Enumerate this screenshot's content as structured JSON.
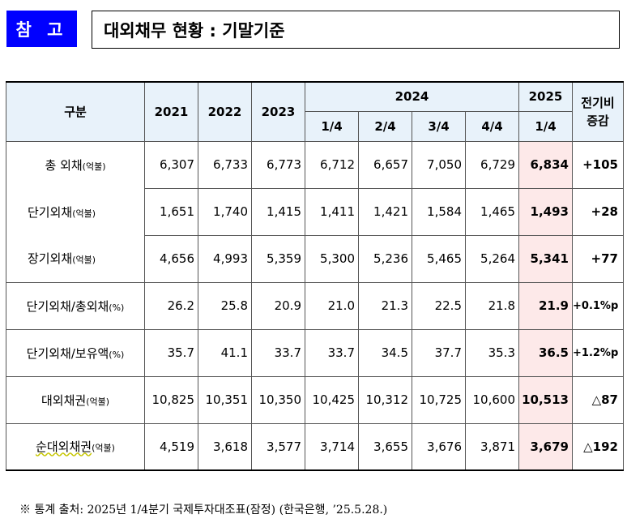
{
  "badge": "참 고",
  "title": "대외채무 현황 : 기말기준",
  "header": {
    "category": "구분",
    "years": [
      "2021",
      "2022",
      "2023"
    ],
    "year_2024": "2024",
    "year_2025": "2025",
    "quarters_2024": [
      "1/4",
      "2/4",
      "3/4",
      "4/4"
    ],
    "quarter_2025": "1/4",
    "change": "전기비\n증감"
  },
  "rows": [
    {
      "label": "총 외채",
      "unit": "(억불)",
      "values": [
        "6,307",
        "6,733",
        "6,773",
        "6,712",
        "6,657",
        "7,050",
        "6,729"
      ],
      "latest": "6,834",
      "change": "+105"
    },
    {
      "label": "단기외채",
      "unit": "(억불)",
      "values": [
        "1,651",
        "1,740",
        "1,415",
        "1,411",
        "1,421",
        "1,584",
        "1,465"
      ],
      "latest": "1,493",
      "change": "+28"
    },
    {
      "label": "장기외채",
      "unit": "(억불)",
      "values": [
        "4,656",
        "4,993",
        "5,359",
        "5,300",
        "5,236",
        "5,465",
        "5,264"
      ],
      "latest": "5,341",
      "change": "+77"
    },
    {
      "label": "단기외채/총외채",
      "unit": "(%)",
      "values": [
        "26.2",
        "25.8",
        "20.9",
        "21.0",
        "21.3",
        "22.5",
        "21.8"
      ],
      "latest": "21.9",
      "change": "+0.1%p"
    },
    {
      "label": "단기외채/보유액",
      "unit": "(%)",
      "values": [
        "35.7",
        "41.1",
        "33.7",
        "33.7",
        "34.5",
        "37.7",
        "35.3"
      ],
      "latest": "36.5",
      "change": "+1.2%p"
    },
    {
      "label": "대외채권",
      "unit": "(억불)",
      "values": [
        "10,825",
        "10,351",
        "10,350",
        "10,425",
        "10,312",
        "10,725",
        "10,600"
      ],
      "latest": "10,513",
      "change": "△87"
    },
    {
      "label": "순대외채권",
      "unit": "(억불)",
      "values": [
        "4,519",
        "3,618",
        "3,577",
        "3,714",
        "3,655",
        "3,676",
        "3,871"
      ],
      "latest": "3,679",
      "change": "△192"
    }
  ],
  "source": "※ 통계 출처: 2025년 1/4분기 국제투자대조표(잠정) (한국은행, ’25.5.28.)",
  "colors": {
    "badge_bg": "#0000ff",
    "header_bg": "#e8f2fa",
    "highlight_bg": "#fde9e9"
  }
}
